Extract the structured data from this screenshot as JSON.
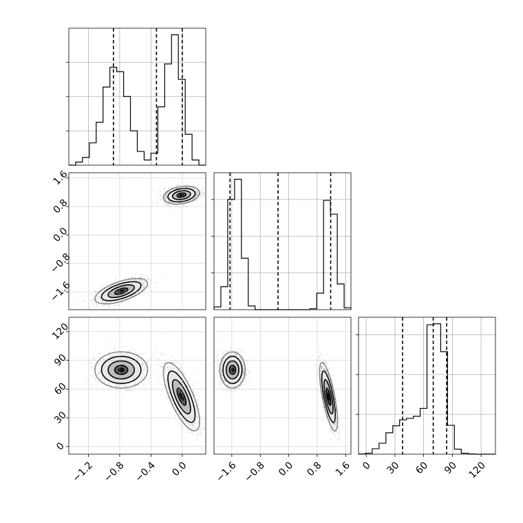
{
  "chart_data": {
    "type": "corner",
    "grid": true,
    "parameters": [
      {
        "range": [
          -1.45,
          0.3
        ],
        "ticks": [
          -1.2,
          -0.8,
          -0.4,
          0.0
        ],
        "tick_labels": [
          "−1.2",
          "−0.8",
          "−0.4",
          "0.0"
        ],
        "quantiles": [
          -0.88,
          -0.33,
          0.0
        ],
        "histogram": {
          "edges": [
            -1.45,
            -1.3625,
            -1.275,
            -1.1875,
            -1.1,
            -1.0125,
            -0.925,
            -0.8375,
            -0.75,
            -0.6625,
            -0.575,
            -0.4875,
            -0.4,
            -0.3125,
            -0.225,
            -0.1375,
            -0.05,
            0.0375,
            0.125,
            0.2125,
            0.3
          ],
          "counts": [
            0,
            18,
            45,
            130,
            250,
            455,
            570,
            545,
            400,
            200,
            80,
            30,
            70,
            340,
            590,
            760,
            500,
            180,
            30,
            0
          ]
        }
      },
      {
        "range": [
          -2.1,
          1.75
        ],
        "ticks": [
          -1.6,
          -0.8,
          0.0,
          0.8,
          1.6
        ],
        "tick_labels": [
          "−1.6",
          "−0.8",
          "0.0",
          "0.8",
          "1.6"
        ],
        "quantiles": [
          -1.65,
          -0.3,
          1.18
        ],
        "histogram": {
          "edges": [
            -2.1,
            -1.9075,
            -1.715,
            -1.5225,
            -1.33,
            -1.1375,
            -0.945,
            -0.7525,
            -0.56,
            -0.3675,
            -0.175,
            0.0175,
            0.21,
            0.4025,
            0.595,
            0.7875,
            0.98,
            1.1725,
            1.365,
            1.5575,
            1.75
          ],
          "counts": [
            30,
            250,
            1200,
            1420,
            560,
            40,
            0,
            0,
            0,
            0,
            0,
            0,
            0,
            0,
            10,
            180,
            1190,
            1040,
            280,
            20
          ]
        }
      },
      {
        "range": [
          -8,
          135
        ],
        "ticks": [
          0,
          30,
          60,
          90,
          120
        ],
        "tick_labels": [
          "0",
          "30",
          "60",
          "90",
          "120"
        ],
        "quantiles": [
          38,
          70,
          84
        ],
        "histogram": {
          "edges": [
            -8,
            -0.85,
            6.3,
            13.45,
            20.6,
            27.75,
            34.9,
            42.05,
            49.2,
            56.35,
            63.5,
            70.65,
            77.8,
            84.95,
            92.1,
            99.25,
            106.4,
            113.55,
            120.7,
            127.85,
            135
          ],
          "counts": [
            2,
            10,
            55,
            110,
            215,
            285,
            345,
            360,
            380,
            460,
            1300,
            1310,
            1030,
            290,
            50,
            10,
            3,
            0,
            0,
            0
          ]
        }
      }
    ],
    "modes": [
      {
        "p0": -0.78,
        "p1": -1.58,
        "p2": 80,
        "s0": 0.16,
        "s1": 0.17,
        "s2": 9,
        "r01": 0.6,
        "r02": 0.0,
        "r12": 0.0
      },
      {
        "p0": -0.01,
        "p1": 1.12,
        "p2": 52,
        "s0": 0.11,
        "s1": 0.12,
        "s2": 17,
        "r01": 0.25,
        "r02": -0.72,
        "r12": -0.72
      }
    ]
  }
}
